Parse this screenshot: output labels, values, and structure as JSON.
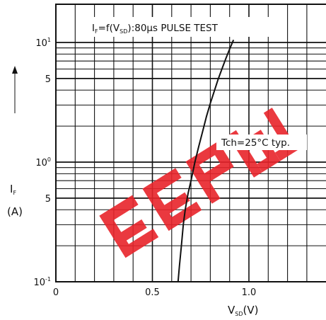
{
  "chart_data": {
    "type": "line",
    "title": "I F=f(VSD):80µs PULSE TEST",
    "title_parts": {
      "pre": "I",
      "sub1": "F",
      "mid": "=f(V",
      "sub2": "SD",
      "post": "):80µs PULSE TEST"
    },
    "annotation": "Tch=25°C typ.",
    "xlabel": "VSD(V)",
    "xlabel_parts": {
      "main": "V",
      "sub": "SD",
      "unit": "(V)"
    },
    "ylabel": "IF (A)",
    "ylabel_parts": {
      "main": "I",
      "sub": "F",
      "unit": "(A)"
    },
    "x_scale": "linear",
    "y_scale": "log",
    "xlim": [
      0,
      1.4
    ],
    "ylim": [
      0.1,
      12
    ],
    "grid": true,
    "x_ticks": [
      {
        "value": 0,
        "label": "0"
      },
      {
        "value": 0.5,
        "label": "0.5"
      },
      {
        "value": 1.0,
        "label": "1.0"
      }
    ],
    "y_ticks": [
      {
        "value": 10,
        "label": "10¹",
        "base": "10",
        "exp": "1"
      },
      {
        "value": 5,
        "label": "5",
        "base": "5",
        "exp": ""
      },
      {
        "value": 1,
        "label": "10⁰",
        "base": "10",
        "exp": "0"
      },
      {
        "value": 0.5,
        "label": "5",
        "base": "5",
        "exp": ""
      },
      {
        "value": 0.1,
        "label": "10⁻¹",
        "base": "10",
        "exp": "-1"
      }
    ],
    "series": [
      {
        "x": [
          0.633,
          0.64,
          0.65,
          0.66,
          0.67,
          0.685,
          0.7,
          0.72,
          0.74,
          0.76,
          0.78,
          0.8,
          0.82,
          0.84,
          0.86,
          0.88,
          0.9,
          0.92
        ],
        "y": [
          0.1,
          0.135,
          0.2,
          0.3,
          0.4,
          0.55,
          0.7,
          1.0,
          1.35,
          1.8,
          2.4,
          3.1,
          3.9,
          4.9,
          6.0,
          7.3,
          8.8,
          10.5
        ],
        "color": "#111111"
      }
    ],
    "watermark_color": "#e8242b"
  }
}
